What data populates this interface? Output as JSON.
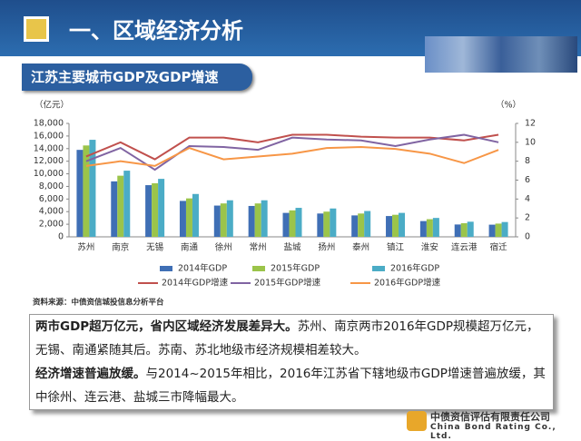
{
  "header": {
    "title": "一、区域经济分析",
    "subtitle": "江苏主要城市GDP及GDP增速"
  },
  "chart_data": {
    "type": "bar_line",
    "y_label": "（亿元）",
    "y2_label": "（%）",
    "categories": [
      "苏州",
      "南京",
      "无锡",
      "南通",
      "徐州",
      "常州",
      "盐城",
      "扬州",
      "泰州",
      "镇江",
      "淮安",
      "连云港",
      "宿迁"
    ],
    "series": [
      {
        "name": "2014年GDP",
        "color": "#3f6fb5",
        "kind": "bar",
        "values": [
          13800,
          8800,
          8200,
          5700,
          4960,
          4900,
          3800,
          3700,
          3400,
          3300,
          2500,
          1960,
          1930
        ]
      },
      {
        "name": "2015年GDP",
        "color": "#9bc44a",
        "kind": "bar",
        "values": [
          14500,
          9700,
          8500,
          6100,
          5300,
          5300,
          4200,
          4000,
          3700,
          3500,
          2800,
          2160,
          2100
        ]
      },
      {
        "name": "2016年GDP",
        "color": "#4bacc6",
        "kind": "bar",
        "values": [
          15400,
          10500,
          9200,
          6800,
          5800,
          5800,
          4600,
          4500,
          4100,
          3800,
          3000,
          2400,
          2350
        ]
      },
      {
        "name": "2014年GDP增速",
        "color": "#c0504d",
        "kind": "line",
        "axis": "y2",
        "values": [
          8.5,
          10,
          8.2,
          10.5,
          10.5,
          10,
          10.8,
          10.8,
          10.6,
          10.5,
          10.5,
          10.2,
          10.8
        ]
      },
      {
        "name": "2015年GDP增速",
        "color": "#8064a2",
        "kind": "line",
        "axis": "y2",
        "values": [
          8,
          9.4,
          7.1,
          9.6,
          9.5,
          9.2,
          10.5,
          10.3,
          10.2,
          9.6,
          10.3,
          10.8,
          10
        ]
      },
      {
        "name": "2016年GDP增速",
        "color": "#f79646",
        "kind": "line",
        "axis": "y2",
        "values": [
          7.5,
          8,
          7.5,
          9.4,
          8.2,
          8.5,
          8.8,
          9.4,
          9.5,
          9.3,
          8.8,
          7.8,
          9.2
        ]
      }
    ],
    "ylim": [
      0,
      18000
    ],
    "yticks": [
      0,
      {
        "value": 2000,
        "label": "2,000"
      },
      {
        "value": 4000,
        "label": "4,000"
      },
      {
        "value": 6000,
        "label": "6,000"
      },
      {
        "value": 8000,
        "label": "8,000"
      },
      {
        "value": 10000,
        "label": "10,000"
      },
      {
        "value": 12000,
        "label": "12,000"
      },
      {
        "value": 14000,
        "label": "14,000"
      },
      {
        "value": 16000,
        "label": "16,000"
      },
      {
        "value": 18000,
        "label": "18,000"
      }
    ],
    "y2lim": [
      0,
      12
    ],
    "y2ticks": [
      0,
      2,
      4,
      6,
      8,
      10,
      12
    ],
    "source": "资料来源：中债资信城投信息分析平台"
  },
  "note": {
    "paragraphs": [
      {
        "bold": "两市GDP超万亿元，省内区域经济发展差异大。",
        "text": "苏州、南京两市2016年GDP规模超万亿元，无锡、南通紧随其后。苏南、苏北地级市经济规模相差较大。"
      },
      {
        "bold": "经济增速普遍放缓。",
        "text": "与2014~2015年相比，2016年江苏省下辖地级市GDP增速普遍放缓，其中徐州、连云港、盐城三市降幅最大。"
      }
    ]
  },
  "footer": {
    "company": "中债资信评估有限责任公司",
    "company_en": "China Bond Rating Co., Ltd."
  }
}
